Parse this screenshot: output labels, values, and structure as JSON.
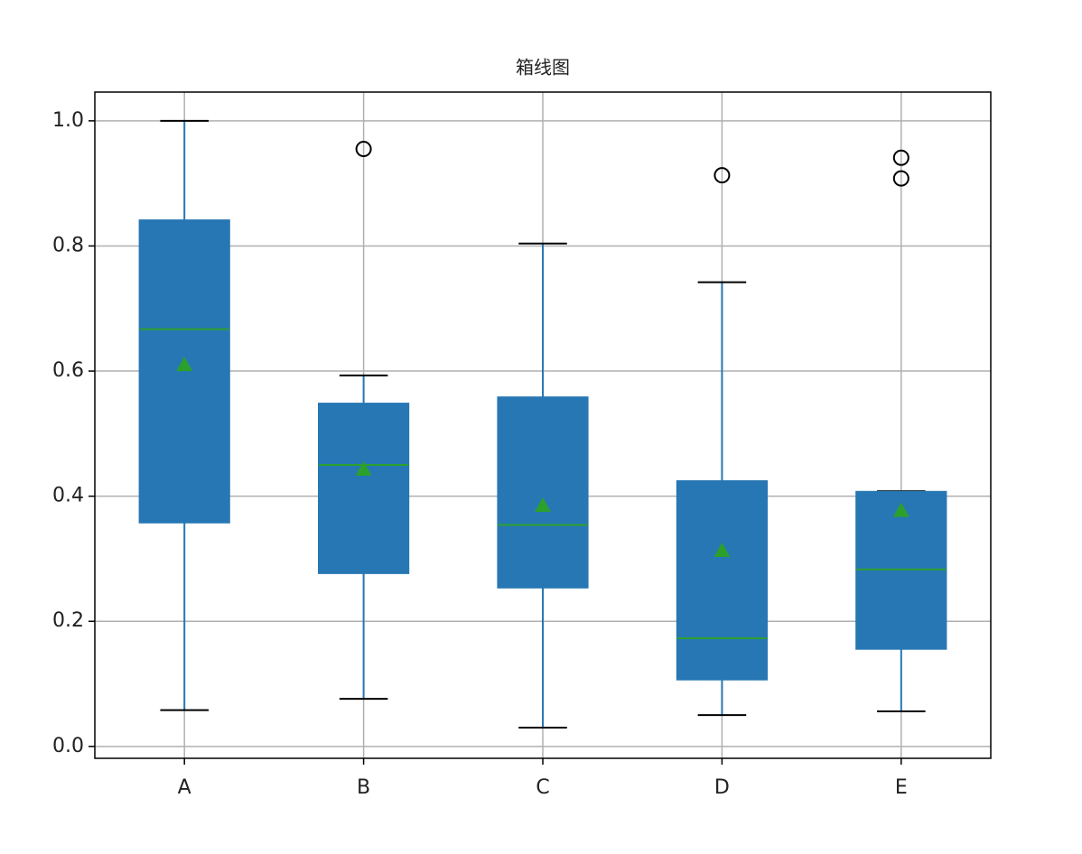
{
  "chart_data": {
    "type": "box",
    "title": "箱线图",
    "categories": [
      "A",
      "B",
      "C",
      "D",
      "E"
    ],
    "boxes": [
      {
        "whislo": 0.058,
        "q1": 0.358,
        "med": 0.667,
        "q3": 0.841,
        "whishi": 1.0,
        "mean": 0.61,
        "fliers": []
      },
      {
        "whislo": 0.076,
        "q1": 0.277,
        "med": 0.45,
        "q3": 0.548,
        "whishi": 0.593,
        "mean": 0.443,
        "fliers": [
          0.955
        ]
      },
      {
        "whislo": 0.03,
        "q1": 0.254,
        "med": 0.354,
        "q3": 0.558,
        "whishi": 0.804,
        "mean": 0.385,
        "fliers": []
      },
      {
        "whislo": 0.05,
        "q1": 0.107,
        "med": 0.173,
        "q3": 0.424,
        "whishi": 0.742,
        "mean": 0.313,
        "fliers": [
          0.913
        ]
      },
      {
        "whislo": 0.056,
        "q1": 0.156,
        "med": 0.283,
        "q3": 0.407,
        "whishi": 0.408,
        "mean": 0.377,
        "fliers": [
          0.941,
          0.908
        ]
      }
    ],
    "color": "#2777b4",
    "median_color": "#2ca02c",
    "mean_color": "#2ca02c",
    "ylim": [
      -0.019,
      1.046
    ],
    "yticks": [
      {
        "value": 0,
        "label": "0.0"
      },
      0.2,
      0.4,
      0.6,
      0.8,
      {
        "value": 1,
        "label": "1.0"
      }
    ],
    "grid": true
  }
}
